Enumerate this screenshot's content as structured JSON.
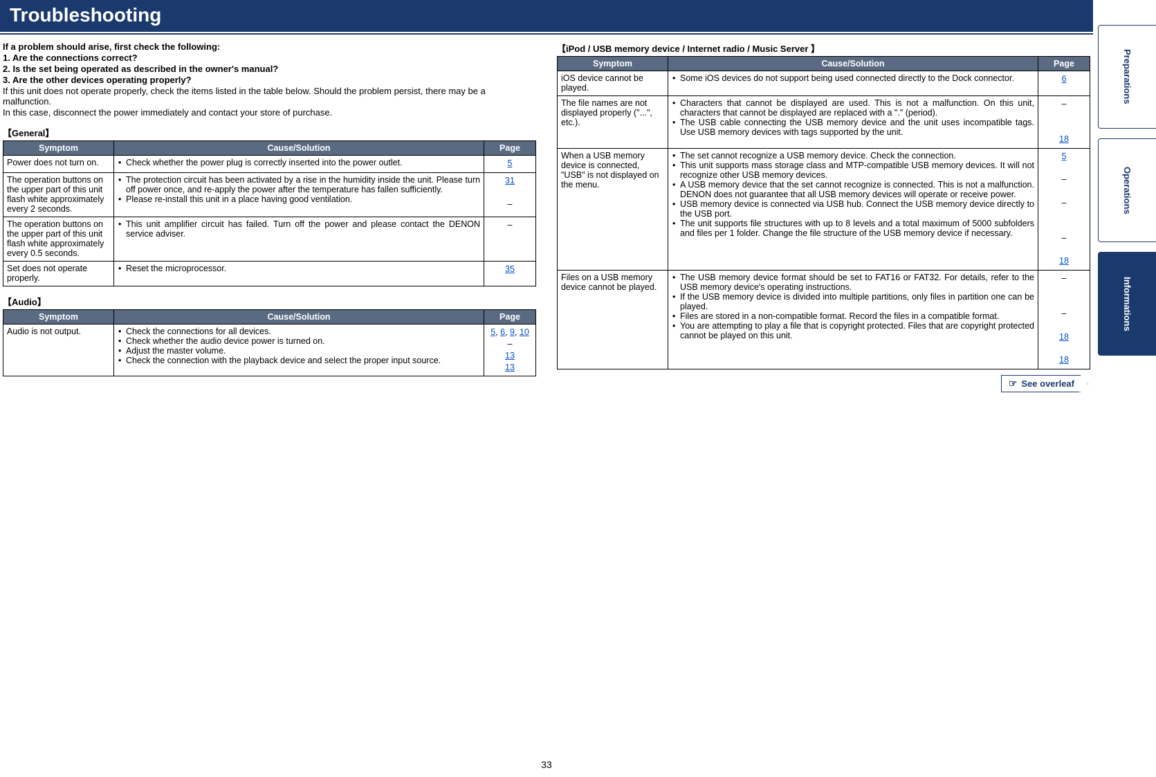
{
  "title": "Troubleshooting",
  "page_number": "33",
  "side_tabs": [
    {
      "label": "Preparations",
      "active": false
    },
    {
      "label": "Operations",
      "active": false
    },
    {
      "label": "Informations",
      "active": true
    }
  ],
  "intro": {
    "lead": "If a problem should arise, first check the following:",
    "q1": "1. Are the connections correct?",
    "q2": "2. Is the set being operated as described in the owner's manual?",
    "q3": "3. Are the other devices operating properly?",
    "p1": "If this unit does not operate properly, check the items listed in the table below. Should the problem persist, there may be a malfunction.",
    "p2": "In this case, disconnect the power immediately and contact your store of purchase."
  },
  "headers": {
    "symptom": "Symptom",
    "cause": "Cause/Solution",
    "page": "Page"
  },
  "sections": {
    "general": {
      "label": "【General】",
      "rows": [
        {
          "symptom": "Power does not turn on.",
          "causes": [
            "Check whether the power plug is correctly inserted into the power outlet."
          ],
          "pages": [
            {
              "text": "5",
              "link": true
            }
          ]
        },
        {
          "symptom": "The operation buttons on the upper part of this unit flash white approximately every 2 seconds.",
          "causes": [
            "The protection circuit has been activated by a rise in the humidity inside the unit. Please turn off power once, and re-apply the power after the temperature has fallen sufficiently.",
            "Please re-install this unit in a place having good ventilation."
          ],
          "pages": [
            {
              "text": "31",
              "link": true
            },
            {
              "text": "",
              "link": false
            },
            {
              "text": "–",
              "link": false
            }
          ]
        },
        {
          "symptom": "The operation buttons on the upper part of this unit flash white approximately every 0.5 seconds.",
          "causes": [
            "This unit amplifier circuit has failed. Turn off the power and please contact the DENON service adviser."
          ],
          "pages": [
            {
              "text": "–",
              "link": false
            }
          ]
        },
        {
          "symptom": "Set does not operate properly.",
          "causes": [
            "Reset the microprocessor."
          ],
          "pages": [
            {
              "text": "35",
              "link": true
            }
          ]
        }
      ]
    },
    "audio": {
      "label": "【Audio】",
      "rows": [
        {
          "symptom": "Audio is not output.",
          "causes": [
            "Check the connections for all devices.",
            "Check whether the audio device power is turned on.",
            "Adjust the master volume.",
            "Check the connection with the playback device and select the proper input source."
          ],
          "pages": [
            {
              "html": "<span class='pg-link'>5</span>, <span class='pg-link'>6</span>, <span class='pg-link'>9</span>, <span class='pg-link'>10</span>"
            },
            {
              "text": "–",
              "link": false
            },
            {
              "text": "13",
              "link": true
            },
            {
              "text": "13",
              "link": true
            }
          ]
        }
      ]
    },
    "ipod": {
      "label": "【iPod / USB memory device / Internet radio / Music Server 】",
      "rows": [
        {
          "symptom": "iOS device cannot be played.",
          "causes": [
            "Some iOS devices do not support being used connected directly to the Dock connector."
          ],
          "pages": [
            {
              "text": "6",
              "link": true
            }
          ]
        },
        {
          "symptom": "The file names are not displayed properly (\"...\", etc.).",
          "causes": [
            "Characters that cannot be displayed are used. This is not a malfunction. On this unit, characters that cannot be displayed are replaced with a \".\" (period).",
            "The USB cable connecting the USB memory device and the unit uses incompatible tags. Use USB memory devices with tags supported by the unit."
          ],
          "pages": [
            {
              "text": "–",
              "link": false
            },
            {
              "text": "",
              "link": false
            },
            {
              "text": "",
              "link": false
            },
            {
              "text": "18",
              "link": true
            }
          ]
        },
        {
          "symptom": "When a USB memory device is connected, \"USB\" is not displayed on the menu.",
          "causes": [
            "The set cannot recognize a USB memory device. Check the connection.",
            "This unit supports mass storage class and MTP-compatible USB memory devices. It will not recognize other USB memory devices.",
            "A USB memory device that the set cannot recognize is connected. This is not a malfunction. DENON does not guarantee that all USB memory devices will operate or receive power.",
            "USB memory device is connected via USB hub. Connect the USB memory device directly to the USB port.",
            "The unit supports file structures with up to 8 levels and a total maximum of 5000 subfolders and files per 1 folder. Change the file structure of the USB memory device if necessary."
          ],
          "pages": [
            {
              "text": "5",
              "link": true
            },
            {
              "text": "",
              "link": false
            },
            {
              "text": "–",
              "link": false
            },
            {
              "text": "",
              "link": false
            },
            {
              "text": "–",
              "link": false
            },
            {
              "text": "",
              "link": false
            },
            {
              "text": "",
              "link": false
            },
            {
              "text": "–",
              "link": false
            },
            {
              "text": "",
              "link": false
            },
            {
              "text": "18",
              "link": true
            }
          ]
        },
        {
          "symptom": "Files on a USB memory device cannot be played.",
          "causes": [
            "The USB memory device format should be set to FAT16 or FAT32. For details, refer to the USB memory device's operating instructions.",
            "If the USB memory device is divided into multiple partitions, only files in partition one can be played.",
            "Files are stored in a non-compatible format. Record the files in a compatible format.",
            "You are attempting to play a file that is copyright protected. Files that are copyright protected cannot be played on this unit."
          ],
          "pages": [
            {
              "text": "–",
              "link": false
            },
            {
              "text": "",
              "link": false
            },
            {
              "text": "",
              "link": false
            },
            {
              "text": "–",
              "link": false
            },
            {
              "text": "",
              "link": false
            },
            {
              "text": "18",
              "link": true
            },
            {
              "text": "",
              "link": false
            },
            {
              "text": "18",
              "link": true
            }
          ]
        }
      ]
    }
  },
  "overleaf": "See overleaf"
}
